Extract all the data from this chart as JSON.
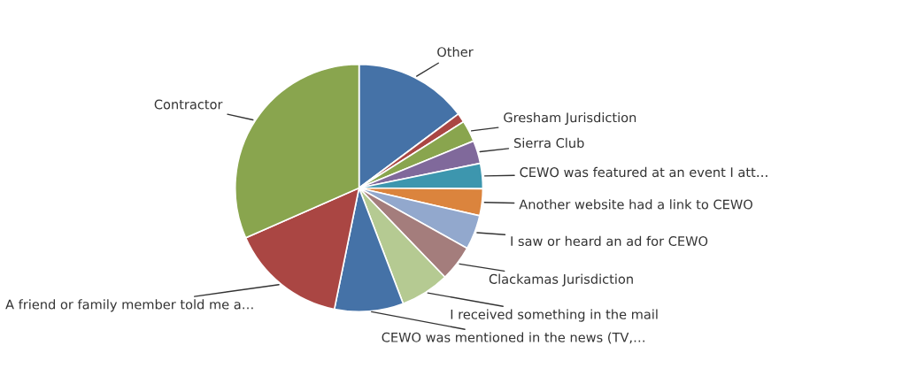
{
  "chart_data": {
    "type": "pie",
    "categories": [
      "Other",
      null,
      "Gresham Jurisdiction",
      "Sierra Club",
      "CEWO was featured at an event I att…",
      "Another website had a link to CEWO",
      "I saw or heard an ad for CEWO",
      "Clackamas Jurisdiction",
      "I received something in the mail",
      "CEWO was mentioned in the news (TV,…",
      "A friend or family member told me a…",
      "Contractor"
    ],
    "values": [
      14.8,
      1.2,
      2.8,
      3.0,
      3.3,
      3.5,
      4.5,
      4.7,
      6.4,
      9.0,
      15.2,
      31.6
    ],
    "colors": [
      "#4572a7",
      "#aa4643",
      "#89a54e",
      "#80699b",
      "#3d96ae",
      "#db843d",
      "#92a8cd",
      "#a47d7c",
      "#b5ca92",
      "#4572a7",
      "#aa4643",
      "#89a54e"
    ]
  }
}
